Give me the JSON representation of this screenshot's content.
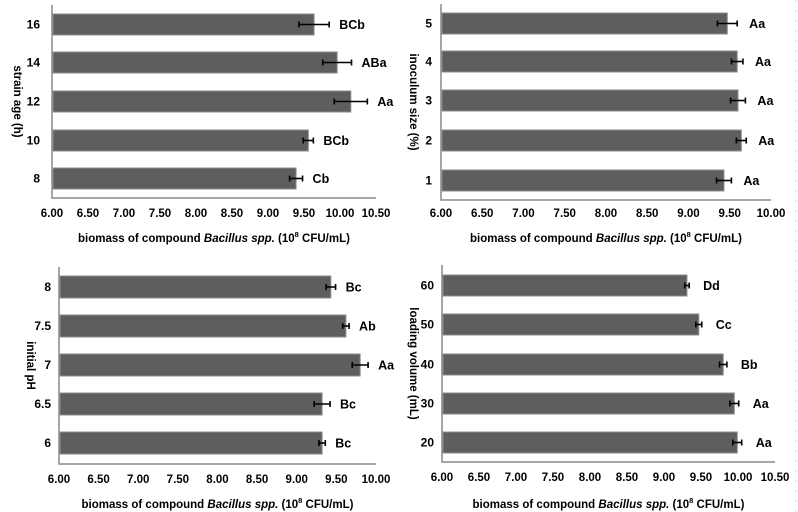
{
  "chart_data": [
    {
      "type": "bar",
      "orientation": "horizontal",
      "title": "",
      "ylabel": "strain age (h)",
      "xlabel": {
        "prefix": "biomass of compound ",
        "italic": "Bacillus spp.",
        "suffix_base": " (10",
        "superscript": "8",
        "suffix_end": " CFU/mL)"
      },
      "xlim": [
        6.0,
        10.5
      ],
      "xticks": [
        "6.00",
        "6.50",
        "7.00",
        "7.50",
        "8.00",
        "8.50",
        "9.00",
        "9.50",
        "10.00",
        "10.50"
      ],
      "categories": [
        "16",
        "14",
        "12",
        "10",
        "8"
      ],
      "values": [
        9.64,
        9.96,
        10.15,
        9.56,
        9.39
      ],
      "errors": [
        0.21,
        0.2,
        0.23,
        0.07,
        0.09
      ],
      "annotations": [
        "BCb",
        "ABa",
        "Aa",
        "BCb",
        "Cb"
      ],
      "grid": false,
      "bar_color": "#5e5e5e"
    },
    {
      "type": "bar",
      "orientation": "horizontal",
      "title": "",
      "ylabel": "inoculum size (%)",
      "xlabel": {
        "prefix": "biomass of compound ",
        "italic": "Bacillus spp.",
        "suffix_base": " (10",
        "superscript": "8",
        "suffix_end": " CFU/mL)"
      },
      "xlim": [
        6.0,
        10.0
      ],
      "xticks": [
        "6.00",
        "6.50",
        "7.00",
        "7.50",
        "8.00",
        "8.50",
        "9.00",
        "9.50",
        "10.00"
      ],
      "categories": [
        "5",
        "4",
        "3",
        "2",
        "1"
      ],
      "values": [
        9.47,
        9.59,
        9.6,
        9.64,
        9.43
      ],
      "errors": [
        0.12,
        0.07,
        0.09,
        0.06,
        0.09
      ],
      "annotations": [
        "Aa",
        "Aa",
        "Aa",
        "Aa",
        "Aa"
      ],
      "grid": false,
      "bar_color": "#5e5e5e"
    },
    {
      "type": "bar",
      "orientation": "horizontal",
      "title": "",
      "ylabel": "initial pH",
      "xlabel": {
        "prefix": "biomass of compound ",
        "italic": "Bacillus spp.",
        "suffix_base": " (10",
        "superscript": "8",
        "suffix_end": " CFU/mL)"
      },
      "xlim": [
        6.0,
        10.0
      ],
      "xticks": [
        "6.00",
        "6.50",
        "7.00",
        "7.50",
        "8.00",
        "8.50",
        "9.00",
        "9.50",
        "10.00"
      ],
      "categories": [
        "8",
        "7.5",
        "7",
        "6.5",
        "6"
      ],
      "values": [
        9.43,
        9.62,
        9.8,
        9.32,
        9.32
      ],
      "errors": [
        0.06,
        0.04,
        0.1,
        0.1,
        0.04
      ],
      "annotations": [
        "Bc",
        "Ab",
        "Aa",
        "Bc",
        "Bc"
      ],
      "grid": false,
      "bar_color": "#5e5e5e"
    },
    {
      "type": "bar",
      "orientation": "horizontal",
      "title": "",
      "ylabel": "loading volume (mL)",
      "xlabel": {
        "prefix": "biomass of compound ",
        "italic": "Bacillus spp.",
        "suffix_base": " (10",
        "superscript": "8",
        "suffix_end": " CFU/mL)"
      },
      "xlim": [
        6.0,
        10.5
      ],
      "xticks": [
        "6.00",
        "6.50",
        "7.00",
        "7.50",
        "8.00",
        "8.50",
        "9.00",
        "9.50",
        "10.00",
        "10.50"
      ],
      "categories": [
        "60",
        "50",
        "40",
        "30",
        "20"
      ],
      "values": [
        9.31,
        9.47,
        9.8,
        9.95,
        9.99
      ],
      "errors": [
        0.03,
        0.04,
        0.05,
        0.06,
        0.06
      ],
      "annotations": [
        "Dd",
        "Cc",
        "Bb",
        "Aa",
        "Aa"
      ],
      "grid": false,
      "bar_color": "#5e5e5e"
    }
  ]
}
